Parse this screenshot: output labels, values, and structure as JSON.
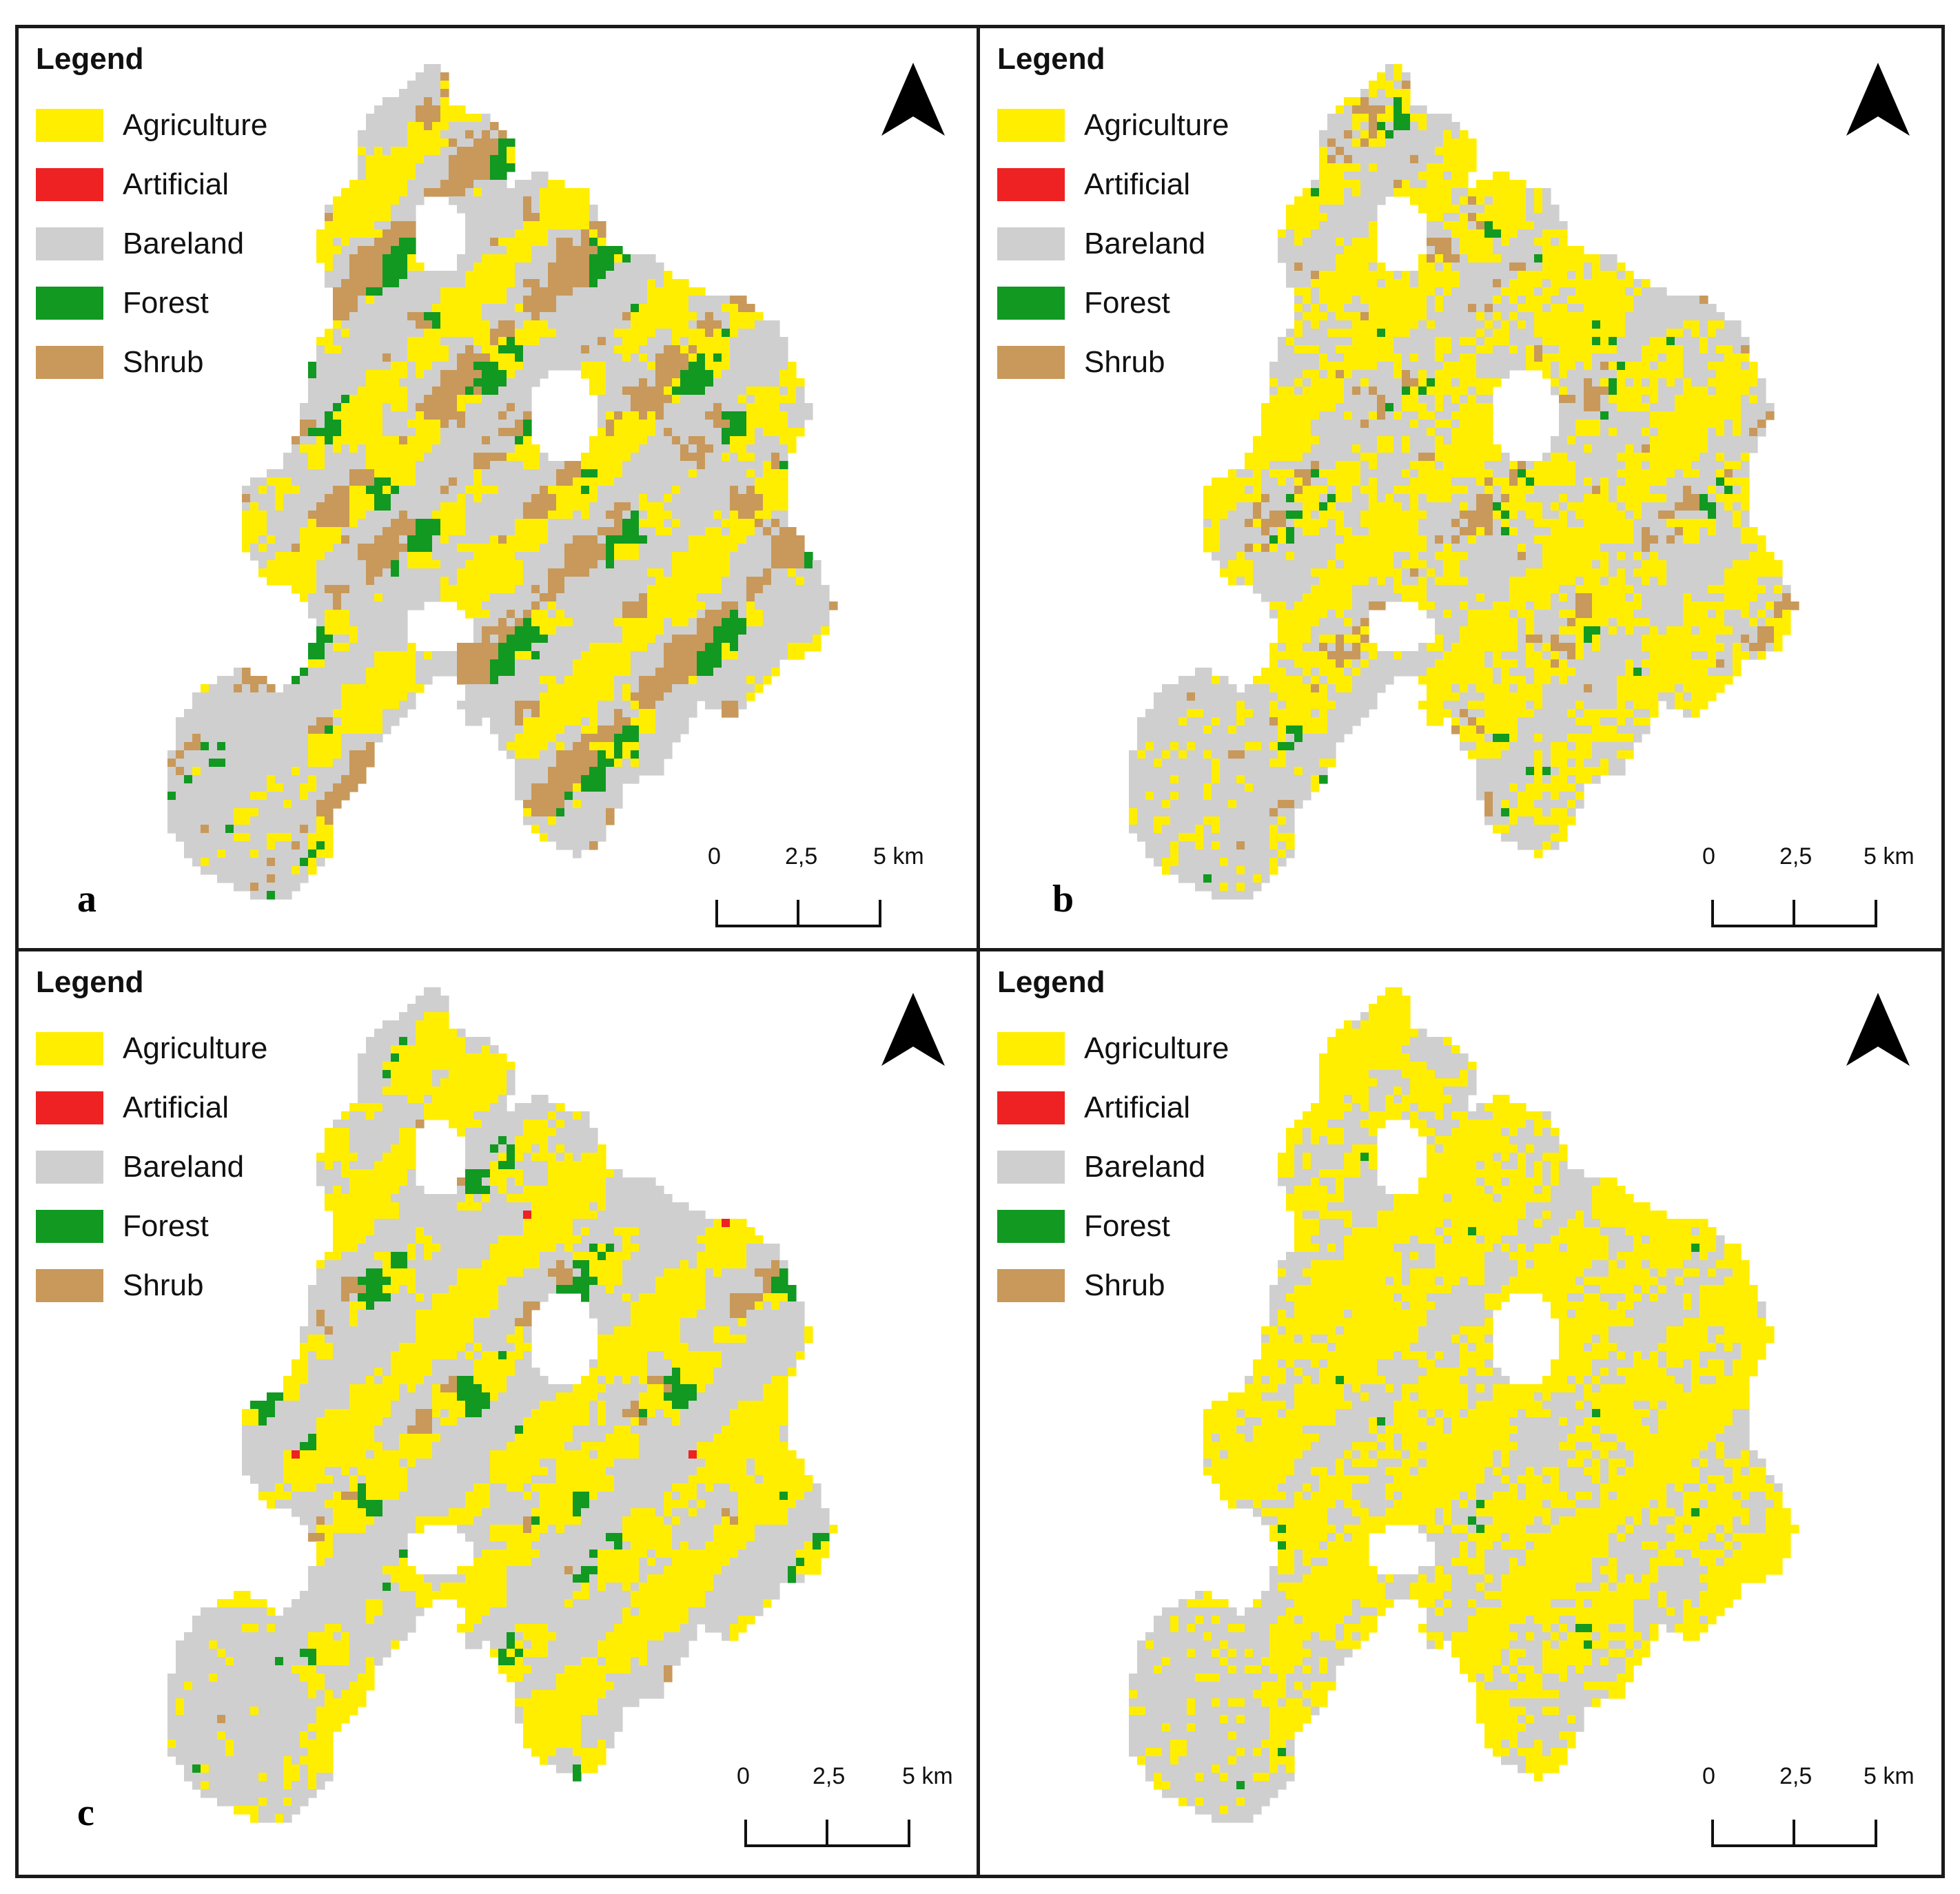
{
  "legend": {
    "title": "Legend",
    "items": [
      {
        "label": "Agriculture",
        "color": "#ffee00"
      },
      {
        "label": "Artificial",
        "color": "#ee2222"
      },
      {
        "label": "Bareland",
        "color": "#cfcfcf"
      },
      {
        "label": "Forest",
        "color": "#119922"
      },
      {
        "label": "Shrub",
        "color": "#c8995a"
      }
    ]
  },
  "scale": {
    "t0": "0",
    "t1": "2,5",
    "t2": "5 km"
  },
  "panels": [
    {
      "letter": "a",
      "mix": {
        "Agriculture": 0.28,
        "Artificial": 0.03,
        "Bareland": 0.38,
        "Forest": 0.13,
        "Shrub": 0.18
      }
    },
    {
      "letter": "b",
      "mix": {
        "Agriculture": 0.42,
        "Artificial": 0.02,
        "Bareland": 0.4,
        "Forest": 0.07,
        "Shrub": 0.09
      }
    },
    {
      "letter": "c",
      "mix": {
        "Agriculture": 0.36,
        "Artificial": 0.05,
        "Bareland": 0.4,
        "Forest": 0.11,
        "Shrub": 0.08
      }
    },
    {
      "letter": "",
      "mix": {
        "Agriculture": 0.55,
        "Artificial": 0.02,
        "Bareland": 0.36,
        "Forest": 0.05,
        "Shrub": 0.02
      }
    }
  ]
}
